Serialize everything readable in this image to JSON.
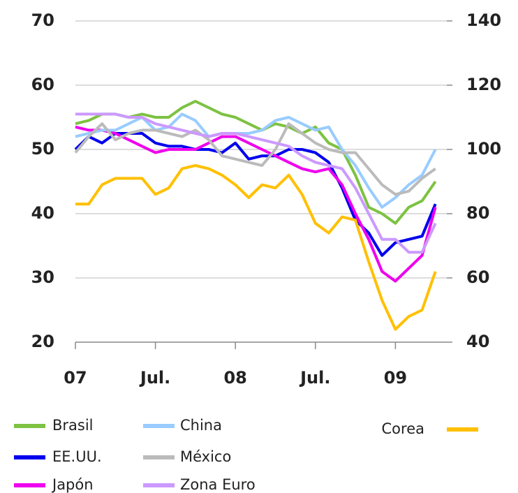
{
  "chart_data": {
    "type": "line",
    "categories": [
      "07",
      null,
      null,
      null,
      null,
      null,
      "Jul.",
      null,
      null,
      null,
      null,
      null,
      "08",
      null,
      null,
      null,
      null,
      null,
      "Jul.",
      null,
      null,
      null,
      null,
      null,
      "09",
      null,
      null,
      null
    ],
    "ylim": [
      20,
      70
    ],
    "yticks": [
      20,
      30,
      40,
      50,
      60,
      70
    ],
    "y2lim": [
      40,
      140
    ],
    "y2ticks": [
      40,
      60,
      80,
      100,
      120,
      140
    ],
    "grid": true,
    "series": [
      {
        "name": "Brasil",
        "color": "#7dc242",
        "values": [
          54,
          54.5,
          55.5,
          55.5,
          55,
          55.5,
          55,
          55,
          56.5,
          57.5,
          56.5,
          55.5,
          55,
          54,
          53,
          54,
          53.5,
          52.5,
          53.5,
          51,
          50,
          46,
          41,
          40,
          38.5,
          41,
          42,
          45
        ]
      },
      {
        "name": "EE.UU.",
        "color": "#0000ee",
        "values": [
          50,
          52,
          51,
          52.5,
          52.5,
          52.5,
          51,
          50.5,
          50.5,
          50,
          50,
          49.5,
          51,
          48.5,
          49,
          49,
          50,
          50,
          49.5,
          48,
          44,
          39,
          37,
          33.5,
          35.5,
          36,
          36.5,
          41.5
        ]
      },
      {
        "name": "Japón",
        "color": "#ee00ee",
        "values": [
          53.5,
          53,
          53,
          52.5,
          51.5,
          50.5,
          49.5,
          50,
          50,
          50,
          51,
          52,
          52,
          51,
          50,
          49,
          48,
          47,
          46.5,
          47,
          44.5,
          40,
          36,
          31,
          29.5,
          31.5,
          33.5,
          41
        ]
      },
      {
        "name": "China",
        "color": "#99ccff",
        "values": [
          52,
          52.5,
          53,
          53,
          54,
          55,
          53,
          53.5,
          55.5,
          54.5,
          52,
          52.5,
          52.5,
          52.5,
          53,
          54.5,
          55,
          54,
          53,
          53.5,
          50,
          47.5,
          44,
          41,
          42.5,
          44.5,
          46,
          50
        ]
      },
      {
        "name": "México",
        "color": "#bbbbbb",
        "values": [
          49.5,
          52,
          54,
          51.5,
          52.5,
          53,
          53,
          52.5,
          52,
          53,
          51.5,
          49,
          48.5,
          48,
          47.5,
          50,
          54,
          52.5,
          51,
          50,
          49.5,
          49.5,
          47,
          44.5,
          43,
          43.5,
          45.5,
          47
        ]
      },
      {
        "name": "Zona Euro",
        "color": "#cc99ff",
        "values": [
          55.5,
          55.5,
          55.5,
          55.5,
          55,
          55,
          54,
          53.5,
          53,
          52.5,
          52,
          52.5,
          52.5,
          52,
          51.5,
          51,
          50.5,
          49,
          48,
          47.5,
          47,
          44,
          40,
          36,
          36,
          34,
          34,
          38.5
        ]
      },
      {
        "name": "Corea",
        "color": "#ffc000",
        "axis": "y2",
        "values": [
          83,
          83,
          89,
          91,
          91,
          91,
          86,
          88,
          94,
          95,
          94,
          92,
          89,
          85,
          89,
          88,
          92,
          86,
          77,
          74,
          79,
          78,
          65,
          53,
          44,
          48,
          50,
          62
        ]
      }
    ]
  }
}
